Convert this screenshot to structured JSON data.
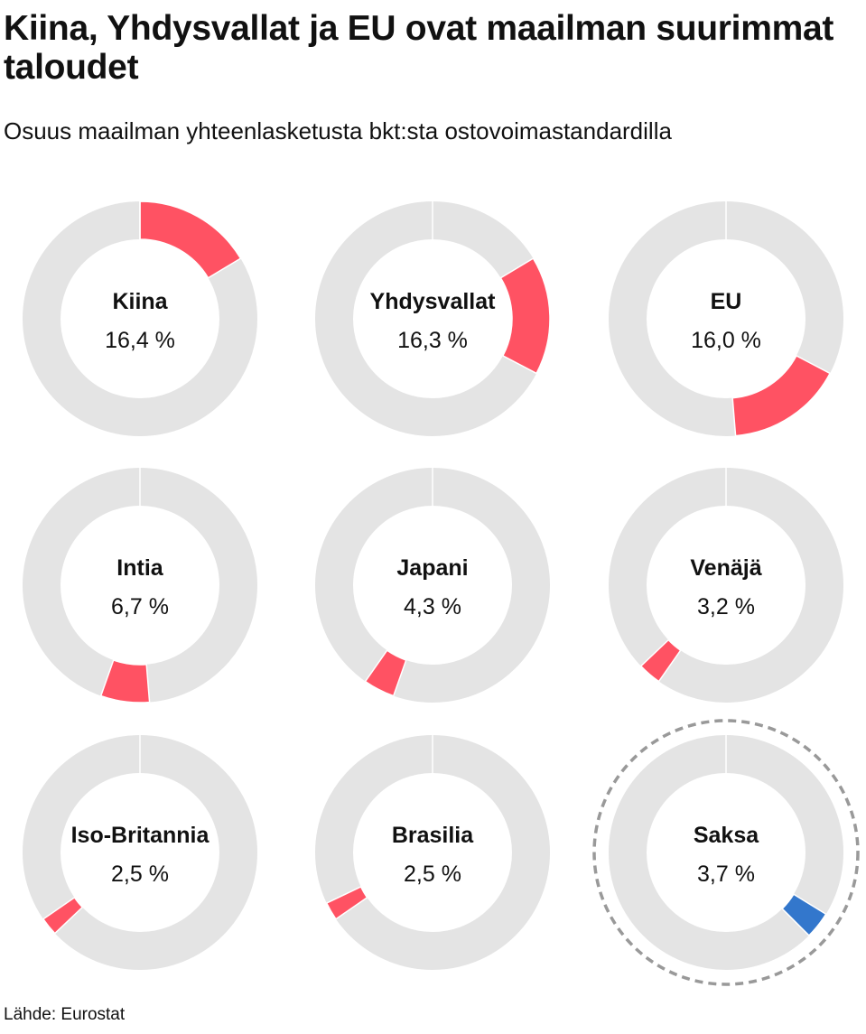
{
  "title": "Kiina, Yhdysvallat ja EU ovat maailman suurimmat taloudet",
  "subtitle": "Osuus maailman yhteenlasketusta bkt:sta ostovoimastandardilla",
  "source": "Lähde: Eurostat",
  "colors": {
    "ring": "#e4e4e4",
    "highlight": "#ff5263",
    "germany": "#3377cc",
    "dashed_ring": "#999999"
  },
  "chart_data": {
    "type": "pie",
    "title": "Kiina, Yhdysvallat ja EU ovat maailman suurimmat taloudet",
    "subtitle": "Osuus maailman yhteenlasketusta bkt:sta ostovoimastandardilla",
    "unit": "%",
    "items": [
      {
        "name": "Kiina",
        "value": 16.4,
        "label": "16,4 %",
        "start": 0
      },
      {
        "name": "Yhdysvallat",
        "value": 16.3,
        "label": "16,3 %",
        "start": 16.4
      },
      {
        "name": "EU",
        "value": 16.0,
        "label": "16,0 %",
        "start": 32.7
      },
      {
        "name": "Intia",
        "value": 6.7,
        "label": "6,7 %",
        "start": 48.7
      },
      {
        "name": "Japani",
        "value": 4.3,
        "label": "4,3 %",
        "start": 55.4
      },
      {
        "name": "Venäjä",
        "value": 3.2,
        "label": "3,2 %",
        "start": 59.7
      },
      {
        "name": "Iso-Britannia",
        "value": 2.5,
        "label": "2,5 %",
        "start": 62.9
      },
      {
        "name": "Brasilia",
        "value": 2.5,
        "label": "2,5 %",
        "start": 65.4
      },
      {
        "name": "Saksa",
        "value": 3.7,
        "label": "3,7 %",
        "start": 33.8,
        "highlighted": true
      }
    ]
  }
}
